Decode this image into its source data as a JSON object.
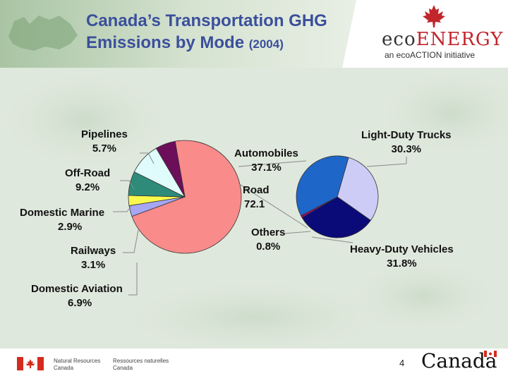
{
  "slide": {
    "title_line1": "Canada’s Transportation GHG",
    "title_line2": "Emissions by Mode",
    "title_year": "(2004)",
    "page_number": "4"
  },
  "branding": {
    "eco_part": "eco",
    "energy_part": "ENERGY",
    "tagline": "an ecoACTION initiative",
    "nrcan_en_1": "Natural Resources",
    "nrcan_en_2": "Canada",
    "nrcan_fr_1": "Ressources naturelles",
    "nrcan_fr_2": "Canada",
    "wordmark": "Canada"
  },
  "colors": {
    "title": "#3b4f9c",
    "flag_red": "#d52b1e",
    "leaf_red": "#c0262c"
  },
  "chart_data": [
    {
      "type": "pie",
      "slices": [
        {
          "name": "Road",
          "value": 72.1,
          "value_label": "72.1",
          "color": "#f98b8b"
        },
        {
          "name": "Railways",
          "value": 3.1,
          "value_label": "3.1%",
          "color": "#a6a6f5"
        },
        {
          "name": "Domestic Marine",
          "value": 2.9,
          "value_label": "2.9%",
          "color": "#f8f84e"
        },
        {
          "name": "Domestic Aviation",
          "value": 6.9,
          "value_label": "6.9%",
          "color": "#2e8b7a"
        },
        {
          "name": "Off-Road",
          "value": 9.2,
          "value_label": "9.2%",
          "color": "#e0fbfb"
        },
        {
          "name": "Pipelines",
          "value": 5.7,
          "value_label": "5.7%",
          "color": "#6c0e5a"
        }
      ]
    },
    {
      "type": "pie",
      "slices": [
        {
          "name": "Light-Duty Trucks",
          "value": 30.3,
          "value_label": "30.3%",
          "color": "#ccccf7"
        },
        {
          "name": "Heavy-Duty Vehicles",
          "value": 31.8,
          "value_label": "31.8%",
          "color": "#0a0a78"
        },
        {
          "name": "Others",
          "value": 0.8,
          "value_label": "0.8%",
          "color": "#b0006a"
        },
        {
          "name": "Automobiles",
          "value": 37.1,
          "value_label": "37.1%",
          "color": "#1f66c9"
        }
      ]
    }
  ]
}
